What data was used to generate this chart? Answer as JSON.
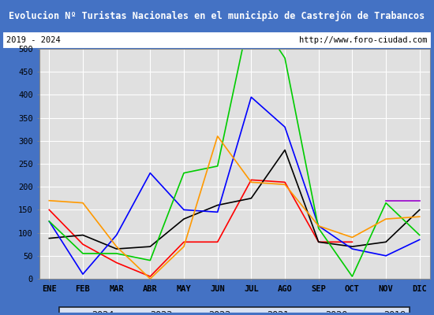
{
  "title": "Evolucion Nº Turistas Nacionales en el municipio de Castrejón de Trabancos",
  "subtitle_left": "2019 - 2024",
  "subtitle_right": "http://www.foro-ciudad.com",
  "months": [
    "ENE",
    "FEB",
    "MAR",
    "ABR",
    "MAY",
    "JUN",
    "JUL",
    "AGO",
    "SEP",
    "OCT",
    "NOV",
    "DIC"
  ],
  "series": {
    "2024": [
      150,
      75,
      35,
      5,
      80,
      80,
      215,
      210,
      80,
      80,
      null,
      null
    ],
    "2023": [
      88,
      95,
      65,
      70,
      130,
      160,
      175,
      280,
      80,
      70,
      80,
      150
    ],
    "2022": [
      125,
      10,
      95,
      230,
      150,
      145,
      395,
      330,
      115,
      65,
      50,
      85
    ],
    "2021": [
      125,
      55,
      55,
      40,
      230,
      245,
      590,
      480,
      110,
      5,
      165,
      95
    ],
    "2020": [
      170,
      165,
      70,
      0,
      70,
      310,
      210,
      205,
      115,
      90,
      130,
      135
    ],
    "2019": [
      null,
      null,
      null,
      null,
      null,
      null,
      null,
      null,
      null,
      null,
      170,
      170
    ]
  },
  "colors": {
    "2024": "#ff0000",
    "2023": "#000000",
    "2022": "#0000ff",
    "2021": "#00cc00",
    "2020": "#ff9900",
    "2019": "#9900cc"
  },
  "ylim": [
    0,
    500
  ],
  "yticks": [
    0,
    50,
    100,
    150,
    200,
    250,
    300,
    350,
    400,
    450,
    500
  ],
  "title_bg": "#4472c4",
  "title_color": "#ffffff",
  "plot_bg": "#e0e0e0",
  "grid_color": "#ffffff",
  "border_color": "#4472c4",
  "title_fontsize": 8.5,
  "tick_fontsize": 7.5,
  "legend_fontsize": 8
}
